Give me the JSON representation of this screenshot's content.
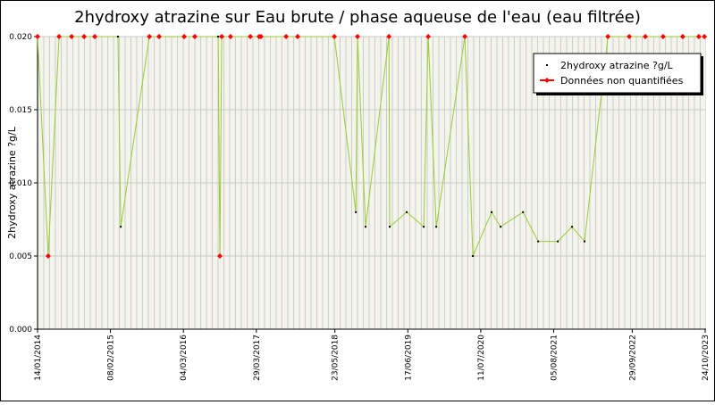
{
  "chart_data": {
    "type": "line",
    "title": "2hydroxy atrazine sur Eau brute / phase aqueuse de l'eau (eau filtrée)",
    "ylabel": "2hydroxy atrazine ?g/L",
    "xlim": [
      "2014-01-14",
      "2023-10-24"
    ],
    "ylim": [
      0,
      0.02
    ],
    "yticks": [
      {
        "value": 0,
        "label": "0.000"
      },
      {
        "value": 0.005,
        "label": "0.005"
      },
      {
        "value": 0.01,
        "label": "0.010"
      },
      {
        "value": 0.015,
        "label": "0.015"
      },
      {
        "value": 0.02,
        "label": "0.020"
      }
    ],
    "xticks": [
      {
        "value": "2014-01-14",
        "label": "14/01/2014"
      },
      {
        "value": "2015-02-08",
        "label": "08/02/2015"
      },
      {
        "value": "2016-03-04",
        "label": "04/03/2016"
      },
      {
        "value": "2017-03-29",
        "label": "29/03/2017"
      },
      {
        "value": "2018-05-23",
        "label": "23/05/2018"
      },
      {
        "value": "2019-06-17",
        "label": "17/06/2019"
      },
      {
        "value": "2020-07-11",
        "label": "11/07/2020"
      },
      {
        "value": "2021-08-05",
        "label": "05/08/2021"
      },
      {
        "value": "2022-09-29",
        "label": "29/09/2022"
      },
      {
        "value": "2023-10-24",
        "label": "24/10/2023"
      }
    ],
    "grid": true,
    "legend": "upper right",
    "series": [
      {
        "name": "2hydroxy atrazine ?g/L",
        "color": "#99cc33",
        "marker_color": "#000000",
        "x": [
          "2014-01-14",
          "2014-03-12",
          "2014-05-09",
          "2014-07-15",
          "2014-09-20",
          "2014-11-16",
          "2015-03-20",
          "2015-04-04",
          "2015-09-04",
          "2015-10-26",
          "2016-03-08",
          "2016-05-04",
          "2016-09-06",
          "2016-09-15",
          "2016-09-25",
          "2016-11-11",
          "2017-02-25",
          "2017-04-13",
          "2017-04-23",
          "2017-09-04",
          "2017-11-05",
          "2018-05-20",
          "2018-09-12",
          "2018-09-21",
          "2018-11-03",
          "2019-03-08",
          "2019-03-12",
          "2019-06-11",
          "2019-09-10",
          "2019-10-04",
          "2019-11-16",
          "2020-04-17",
          "2020-05-30",
          "2020-09-07",
          "2020-10-25",
          "2021-02-22",
          "2021-05-14",
          "2021-08-27",
          "2021-11-11",
          "2022-01-17",
          "2022-05-22",
          "2022-09-13",
          "2022-12-08",
          "2023-03-13",
          "2023-06-26",
          "2023-09-20",
          "2023-10-20"
        ],
        "values": [
          0.02,
          0.005,
          0.02,
          0.02,
          0.02,
          0.02,
          0.02,
          0.007,
          0.02,
          0.02,
          0.02,
          0.02,
          0.02,
          0.005,
          0.02,
          0.02,
          0.02,
          0.02,
          0.02,
          0.02,
          0.02,
          0.02,
          0.008,
          0.02,
          0.007,
          0.02,
          0.007,
          0.008,
          0.007,
          0.02,
          0.007,
          0.02,
          0.005,
          0.008,
          0.007,
          0.008,
          0.006,
          0.006,
          0.007,
          0.006,
          0.02,
          0.02,
          0.02,
          0.02,
          0.02,
          0.02,
          0.02
        ]
      },
      {
        "name": "Données non quantifiées",
        "color": "#ff0000",
        "x": [
          "2014-01-14",
          "2014-03-12",
          "2014-05-09",
          "2014-07-15",
          "2014-09-20",
          "2014-11-16",
          "2015-09-04",
          "2015-10-26",
          "2016-03-08",
          "2016-05-04",
          "2016-09-15",
          "2016-09-25",
          "2016-11-11",
          "2017-02-25",
          "2017-04-13",
          "2017-04-23",
          "2017-09-04",
          "2017-11-05",
          "2018-05-20",
          "2018-09-21",
          "2019-03-08",
          "2019-10-04",
          "2020-04-17",
          "2022-05-22",
          "2022-09-13",
          "2022-12-08",
          "2023-03-13",
          "2023-06-26",
          "2023-09-20",
          "2023-10-20"
        ],
        "values": [
          0.02,
          0.005,
          0.02,
          0.02,
          0.02,
          0.02,
          0.02,
          0.02,
          0.02,
          0.02,
          0.005,
          0.02,
          0.02,
          0.02,
          0.02,
          0.02,
          0.02,
          0.02,
          0.02,
          0.02,
          0.02,
          0.02,
          0.02,
          0.02,
          0.02,
          0.02,
          0.02,
          0.02,
          0.02,
          0.02
        ]
      }
    ]
  }
}
